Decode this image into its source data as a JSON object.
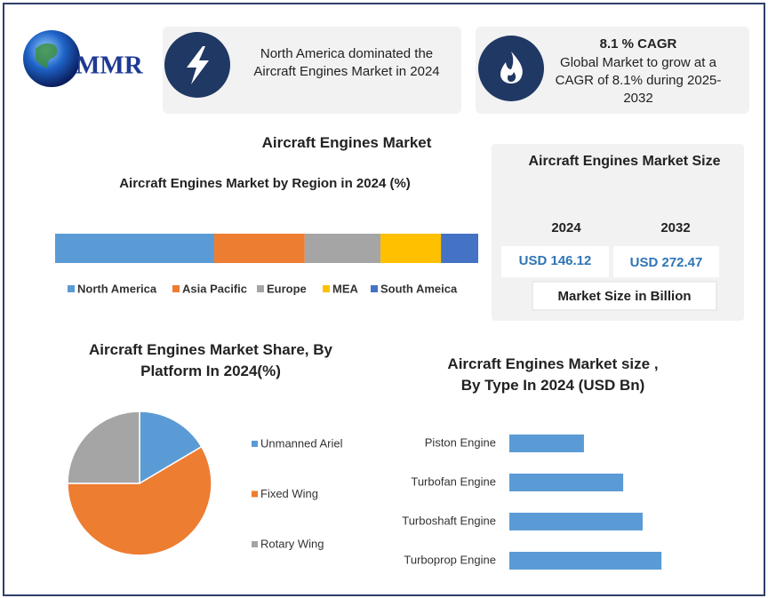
{
  "logo": "MMR",
  "highlights": [
    {
      "text": "North America dominated the Aircraft Engines Market in 2024"
    },
    {
      "title": "8.1 % CAGR",
      "text": "Global Market to grow at a CAGR of 8.1% during 2025-2032"
    }
  ],
  "title": "Aircraft Engines Market",
  "chart_data": [
    {
      "type": "stacked_bar",
      "title": "Aircraft Engines Market by Region in 2024 (%)",
      "series": [
        {
          "name": "North America",
          "color": "#5b9bd5",
          "values": [
            37.6
          ]
        },
        {
          "name": "Asia Pacific",
          "color": "#ed7d31",
          "values": [
            21.4
          ]
        },
        {
          "name": "Europe",
          "color": "#a5a5a5",
          "values": [
            17.9
          ]
        },
        {
          "name": "MEA",
          "color": "#ffc000",
          "values": [
            14.3
          ]
        },
        {
          "name": "South Ameica",
          "color": "#4472c4",
          "values": [
            8.8
          ]
        }
      ]
    },
    {
      "type": "pie",
      "title": "Aircraft Engines Market Share, By Platform In 2024(%)",
      "categories": [
        "Unmanned Ariel",
        "Fixed Wing",
        "Rotary Wing"
      ],
      "values": [
        16.5,
        58.5,
        25
      ],
      "colors": [
        "#5b9bd5",
        "#ed7d31",
        "#a5a5a5"
      ]
    },
    {
      "type": "bar",
      "title": "Aircraft Engines Market size , By Type In 2024 (USD Bn)",
      "categories": [
        "Piston Engine",
        "Turbofan Engine",
        "Turboshaft Engine",
        "Turboprop Engine"
      ],
      "values": [
        23.0,
        35.1,
        41.1,
        46.9
      ],
      "color": "#5b9bd5"
    }
  ],
  "market_size": {
    "title": "Aircraft Engines Market Size",
    "years": [
      "2024",
      "2032"
    ],
    "values": [
      "USD 146.12",
      "USD 272.47"
    ],
    "note": "Market Size in Billion"
  }
}
